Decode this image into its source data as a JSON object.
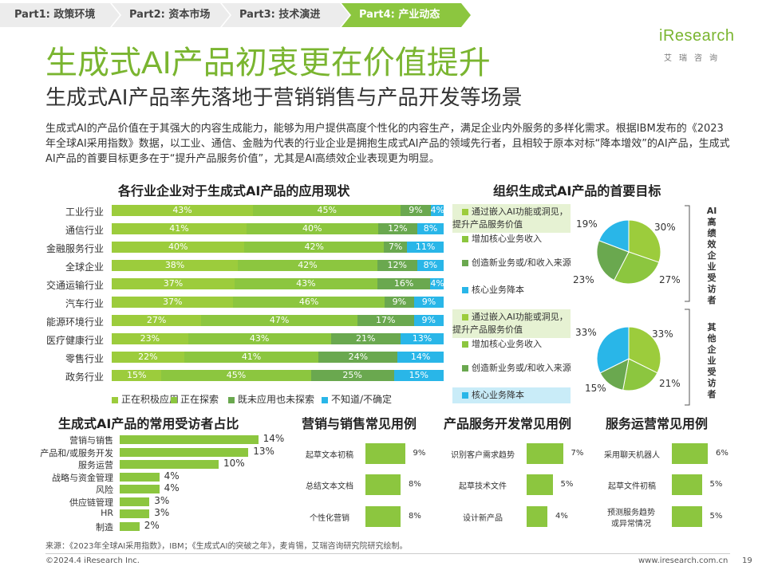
{
  "nav": {
    "tabs": [
      {
        "label": "Part1: 政策环境"
      },
      {
        "label": "Part2: 资本市场"
      },
      {
        "label": "Part3: 技术演进"
      },
      {
        "label": "Part4: 产业动态"
      }
    ],
    "active_index": 3
  },
  "logo": {
    "main": "iResearch",
    "sub": "艾瑞咨询"
  },
  "title": "生成式AI产品初衷更在价值提升",
  "subtitle": "生成式AI产品率先落地于营销销售与产品开发等场景",
  "intro": "生成式AI的产品价值在于其强大的内容生成能力，能够为用户提供高度个性化的内容生产，满足企业内外服务的多样化需求。根据IBM发布的《2023年全球AI采用指数》数据，以工业、通信、金融为代表的行业企业是拥抱生成式AI产品的领域先行者，且相较于原本对标“降本增效”的AI产品，生成式AI产品的首要目标更多在于“提升产品服务价值”，尤其是AI高绩效企业表现更为明显。",
  "colors": {
    "accent": "#8cc63f",
    "s1": "#9ccc3c",
    "s2": "#8cc63f",
    "s3": "#6aa84f",
    "s4": "#29b6e8"
  },
  "industry_chart": {
    "title": "各行业企业对于生成式AI产品的应用现状",
    "rows": [
      {
        "label": "工业行业",
        "values": [
          43,
          45,
          9,
          4
        ],
        "texts": [
          "43%",
          "45%",
          "9%",
          "4%"
        ]
      },
      {
        "label": "通信行业",
        "values": [
          41,
          40,
          12,
          8
        ],
        "texts": [
          "41%",
          "40%",
          "12%",
          "8%"
        ]
      },
      {
        "label": "金融服务行业",
        "values": [
          40,
          42,
          7,
          11
        ],
        "texts": [
          "40%",
          "42%",
          "7%",
          "11%"
        ]
      },
      {
        "label": "全球企业",
        "values": [
          38,
          42,
          12,
          8
        ],
        "texts": [
          "38%",
          "42%",
          "12%",
          "8%"
        ]
      },
      {
        "label": "交通运输行业",
        "values": [
          37,
          43,
          16,
          4
        ],
        "texts": [
          "37%",
          "43%",
          "16%",
          "4%"
        ]
      },
      {
        "label": "汽车行业",
        "values": [
          37,
          46,
          9,
          9
        ],
        "texts": [
          "37%",
          "46%",
          "9%",
          "9%"
        ]
      },
      {
        "label": "能源环境行业",
        "values": [
          27,
          47,
          17,
          9
        ],
        "texts": [
          "27%",
          "47%",
          "17%",
          "9%"
        ]
      },
      {
        "label": "医疗健康行业",
        "values": [
          23,
          43,
          21,
          13
        ],
        "texts": [
          "23%",
          "43%",
          "21%",
          "13%"
        ]
      },
      {
        "label": "零售行业",
        "values": [
          22,
          41,
          24,
          14
        ],
        "texts": [
          "22%",
          "41%",
          "24%",
          "14%"
        ]
      },
      {
        "label": "政务行业",
        "values": [
          15,
          45,
          25,
          15
        ],
        "texts": [
          "15%",
          "45%",
          "25%",
          "15%"
        ]
      }
    ],
    "legend": [
      "正在积极应用",
      "正在探索",
      "既未应用也未探索",
      "不知道/不确定"
    ]
  },
  "goals": {
    "title": "组织生成式AI产品的首要目标",
    "items": [
      "通过嵌入AI功能或洞见，提升产品服务价值",
      "增加核心业务收入",
      "创造新业务或/和收入来源",
      "核心业务降本"
    ],
    "groups": [
      {
        "label": "AI高绩效企业受访者",
        "values": [
          30,
          27,
          23,
          19
        ],
        "texts": [
          "30%",
          "27%",
          "23%",
          "19%"
        ],
        "highlight": [
          0
        ]
      },
      {
        "label": "其他企业受访者",
        "values": [
          33,
          21,
          15,
          33
        ],
        "texts": [
          "33%",
          "21%",
          "15%",
          "33%"
        ],
        "highlight": [
          0,
          3
        ]
      }
    ]
  },
  "respondents": {
    "title": "生成式AI产品的常用受访者占比",
    "items": [
      {
        "label": "营销与销售",
        "value": 14,
        "text": "14%"
      },
      {
        "label": "产品和/或服务开发",
        "value": 13,
        "text": "13%"
      },
      {
        "label": "服务运营",
        "value": 10,
        "text": "10%"
      },
      {
        "label": "战略与资金管理",
        "value": 4,
        "text": "4%"
      },
      {
        "label": "风险",
        "value": 4,
        "text": "4%"
      },
      {
        "label": "供应链管理",
        "value": 3,
        "text": "3%"
      },
      {
        "label": "HR",
        "value": 3,
        "text": "3%"
      },
      {
        "label": "制造",
        "value": 2,
        "text": "2%"
      }
    ]
  },
  "use_cases": [
    {
      "title": "营销与销售常见用例",
      "items": [
        {
          "label": "起草文本初稿",
          "value": 9,
          "text": "9%"
        },
        {
          "label": "总结文本文档",
          "value": 8,
          "text": "8%"
        },
        {
          "label": "个性化营销",
          "value": 8,
          "text": "8%"
        }
      ]
    },
    {
      "title": "产品服务开发常见用例",
      "items": [
        {
          "label": "识别客户需求趋势",
          "value": 7,
          "text": "7%"
        },
        {
          "label": "起草技术文件",
          "value": 5,
          "text": "5%"
        },
        {
          "label": "设计新产品",
          "value": 4,
          "text": "4%"
        }
      ]
    },
    {
      "title": "服务运营常见用例",
      "items": [
        {
          "label": "采用聊天机器人",
          "value": 6,
          "text": "6%"
        },
        {
          "label": "起草文件初稿",
          "value": 5,
          "text": "5%"
        },
        {
          "label": "预测服务趋势或异常情况",
          "value": 5,
          "text": "5%"
        }
      ]
    }
  ],
  "chart_data": [
    {
      "type": "bar",
      "title": "各行业企业对于生成式AI产品的应用现状",
      "categories": [
        "工业行业",
        "通信行业",
        "金融服务行业",
        "全球企业",
        "交通运输行业",
        "汽车行业",
        "能源环境行业",
        "医疗健康行业",
        "零售行业",
        "政务行业"
      ],
      "series": [
        {
          "name": "正在积极应用",
          "values": [
            43,
            41,
            40,
            38,
            37,
            37,
            27,
            23,
            22,
            15
          ]
        },
        {
          "name": "正在探索",
          "values": [
            45,
            40,
            42,
            42,
            43,
            46,
            47,
            43,
            41,
            45
          ]
        },
        {
          "name": "既未应用也未探索",
          "values": [
            9,
            12,
            7,
            12,
            16,
            9,
            17,
            21,
            24,
            25
          ]
        },
        {
          "name": "不知道/不确定",
          "values": [
            4,
            8,
            11,
            8,
            4,
            9,
            9,
            13,
            14,
            15
          ]
        }
      ],
      "stacked": true
    },
    {
      "type": "pie",
      "title": "AI高绩效企业受访者",
      "labels": [
        "通过嵌入AI功能或洞见，提升产品服务价值",
        "增加核心业务收入",
        "创造新业务或/和收入来源",
        "核心业务降本"
      ],
      "values": [
        30,
        27,
        23,
        19
      ]
    },
    {
      "type": "pie",
      "title": "其他企业受访者",
      "labels": [
        "通过嵌入AI功能或洞见，提升产品服务价值",
        "增加核心业务收入",
        "创造新业务或/和收入来源",
        "核心业务降本"
      ],
      "values": [
        33,
        21,
        15,
        33
      ]
    },
    {
      "type": "bar",
      "title": "生成式AI产品的常用受访者占比",
      "categories": [
        "营销与销售",
        "产品和/或服务开发",
        "服务运营",
        "战略与资金管理",
        "风险",
        "供应链管理",
        "HR",
        "制造"
      ],
      "values": [
        14,
        13,
        10,
        4,
        4,
        3,
        3,
        2
      ]
    },
    {
      "type": "bar",
      "title": "营销与销售常见用例",
      "categories": [
        "起草文本初稿",
        "总结文本文档",
        "个性化营销"
      ],
      "values": [
        9,
        8,
        8
      ]
    },
    {
      "type": "bar",
      "title": "产品服务开发常见用例",
      "categories": [
        "识别客户需求趋势",
        "起草技术文件",
        "设计新产品"
      ],
      "values": [
        7,
        5,
        4
      ]
    },
    {
      "type": "bar",
      "title": "服务运营常见用例",
      "categories": [
        "采用聊天机器人",
        "起草文件初稿",
        "预测服务趋势或异常情况"
      ],
      "values": [
        6,
        5,
        5
      ]
    }
  ],
  "source": "来源：《2023年全球AI采用指数》，IBM；《生成式AI的突破之年》，麦肯锡，艾瑞咨询研究院研究绘制。",
  "footer": {
    "copyright": "©2024.4 iResearch Inc.",
    "url": "www.iresearch.com.cn",
    "page": "19"
  }
}
